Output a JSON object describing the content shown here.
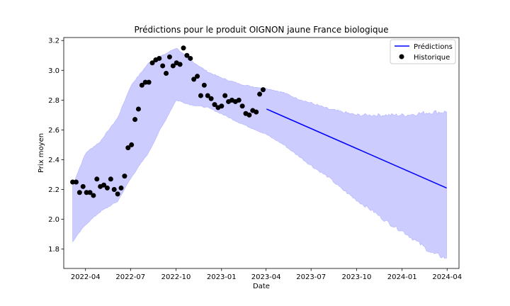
{
  "chart_data": {
    "type": "line",
    "title": "Prédictions pour le produit OIGNON jaune France biologique",
    "xlabel": "Date",
    "ylabel": "Prix moyen",
    "xlim": [
      "2022-02-16",
      "2024-04-25"
    ],
    "ylim": [
      1.67,
      3.22
    ],
    "x_ticks": [
      "2022-04",
      "2022-07",
      "2022-10",
      "2023-01",
      "2023-04",
      "2023-07",
      "2023-10",
      "2024-01",
      "2024-04"
    ],
    "y_ticks": [
      1.8,
      2.0,
      2.2,
      2.4,
      2.6,
      2.8,
      3.0,
      3.2
    ],
    "grid": false,
    "legend": {
      "placement": "top-right",
      "entries": [
        "Prédictions",
        "Historique"
      ]
    },
    "colors": {
      "prediction_line": "#0000ff",
      "interval_fill": "#ccccff",
      "interval_edge": "#b3b3ff",
      "historique": "#000000"
    },
    "series": [
      {
        "name": "Historique",
        "type": "scatter",
        "x": [
          "2022-03-06",
          "2022-03-13",
          "2022-03-20",
          "2022-03-27",
          "2022-04-03",
          "2022-04-10",
          "2022-04-17",
          "2022-04-24",
          "2022-05-01",
          "2022-05-08",
          "2022-05-15",
          "2022-05-22",
          "2022-05-29",
          "2022-06-05",
          "2022-06-12",
          "2022-06-19",
          "2022-06-26",
          "2022-07-03",
          "2022-07-10",
          "2022-07-17",
          "2022-07-24",
          "2022-07-31",
          "2022-08-07",
          "2022-08-14",
          "2022-08-21",
          "2022-08-28",
          "2022-09-04",
          "2022-09-11",
          "2022-09-18",
          "2022-09-25",
          "2022-10-02",
          "2022-10-09",
          "2022-10-16",
          "2022-10-23",
          "2022-10-30",
          "2022-11-06",
          "2022-11-13",
          "2022-11-20",
          "2022-11-27",
          "2022-12-04",
          "2022-12-11",
          "2022-12-18",
          "2022-12-25",
          "2023-01-01",
          "2023-01-08",
          "2023-01-15",
          "2023-01-22",
          "2023-01-29",
          "2023-02-05",
          "2023-02-12",
          "2023-02-19",
          "2023-02-26",
          "2023-03-05",
          "2023-03-12",
          "2023-03-19",
          "2023-03-26"
        ],
        "y": [
          2.25,
          2.25,
          2.18,
          2.22,
          2.18,
          2.18,
          2.16,
          2.27,
          2.22,
          2.23,
          2.21,
          2.27,
          2.2,
          2.17,
          2.21,
          2.29,
          2.48,
          2.5,
          2.67,
          2.74,
          2.9,
          2.92,
          2.92,
          3.05,
          3.07,
          3.08,
          3.03,
          2.98,
          3.09,
          3.03,
          3.05,
          3.04,
          3.15,
          3.1,
          3.08,
          2.94,
          2.96,
          2.83,
          2.9,
          2.83,
          2.81,
          2.77,
          2.75,
          2.76,
          2.83,
          2.79,
          2.8,
          2.79,
          2.8,
          2.76,
          2.71,
          2.7,
          2.73,
          2.72,
          2.84,
          2.87
        ]
      },
      {
        "name": "Prédictions",
        "type": "line",
        "x": [
          "2023-04-02",
          "2024-03-31"
        ],
        "y": [
          2.74,
          2.21
        ]
      }
    ],
    "interval": {
      "x": [
        "2022-03-06",
        "2022-04-03",
        "2022-05-01",
        "2022-06-05",
        "2022-07-03",
        "2022-08-07",
        "2022-09-04",
        "2022-10-02",
        "2022-10-30",
        "2022-12-04",
        "2023-01-01",
        "2023-02-05",
        "2023-03-05",
        "2023-04-02",
        "2023-05-07",
        "2023-06-04",
        "2023-07-02",
        "2023-08-06",
        "2023-09-03",
        "2023-10-01",
        "2023-11-05",
        "2023-12-03",
        "2024-01-07",
        "2024-02-04",
        "2024-03-03",
        "2024-03-31"
      ],
      "upper": [
        2.23,
        2.45,
        2.52,
        2.68,
        2.9,
        3.05,
        3.1,
        3.15,
        3.07,
        2.99,
        2.95,
        2.91,
        2.89,
        2.88,
        2.85,
        2.81,
        2.78,
        2.74,
        2.72,
        2.7,
        2.7,
        2.7,
        2.7,
        2.71,
        2.72,
        2.72
      ],
      "lower": [
        1.85,
        1.97,
        2.05,
        2.12,
        2.28,
        2.45,
        2.63,
        2.8,
        2.77,
        2.75,
        2.71,
        2.65,
        2.61,
        2.57,
        2.5,
        2.43,
        2.36,
        2.28,
        2.2,
        2.13,
        2.05,
        1.98,
        1.91,
        1.84,
        1.77,
        1.74
      ]
    }
  }
}
